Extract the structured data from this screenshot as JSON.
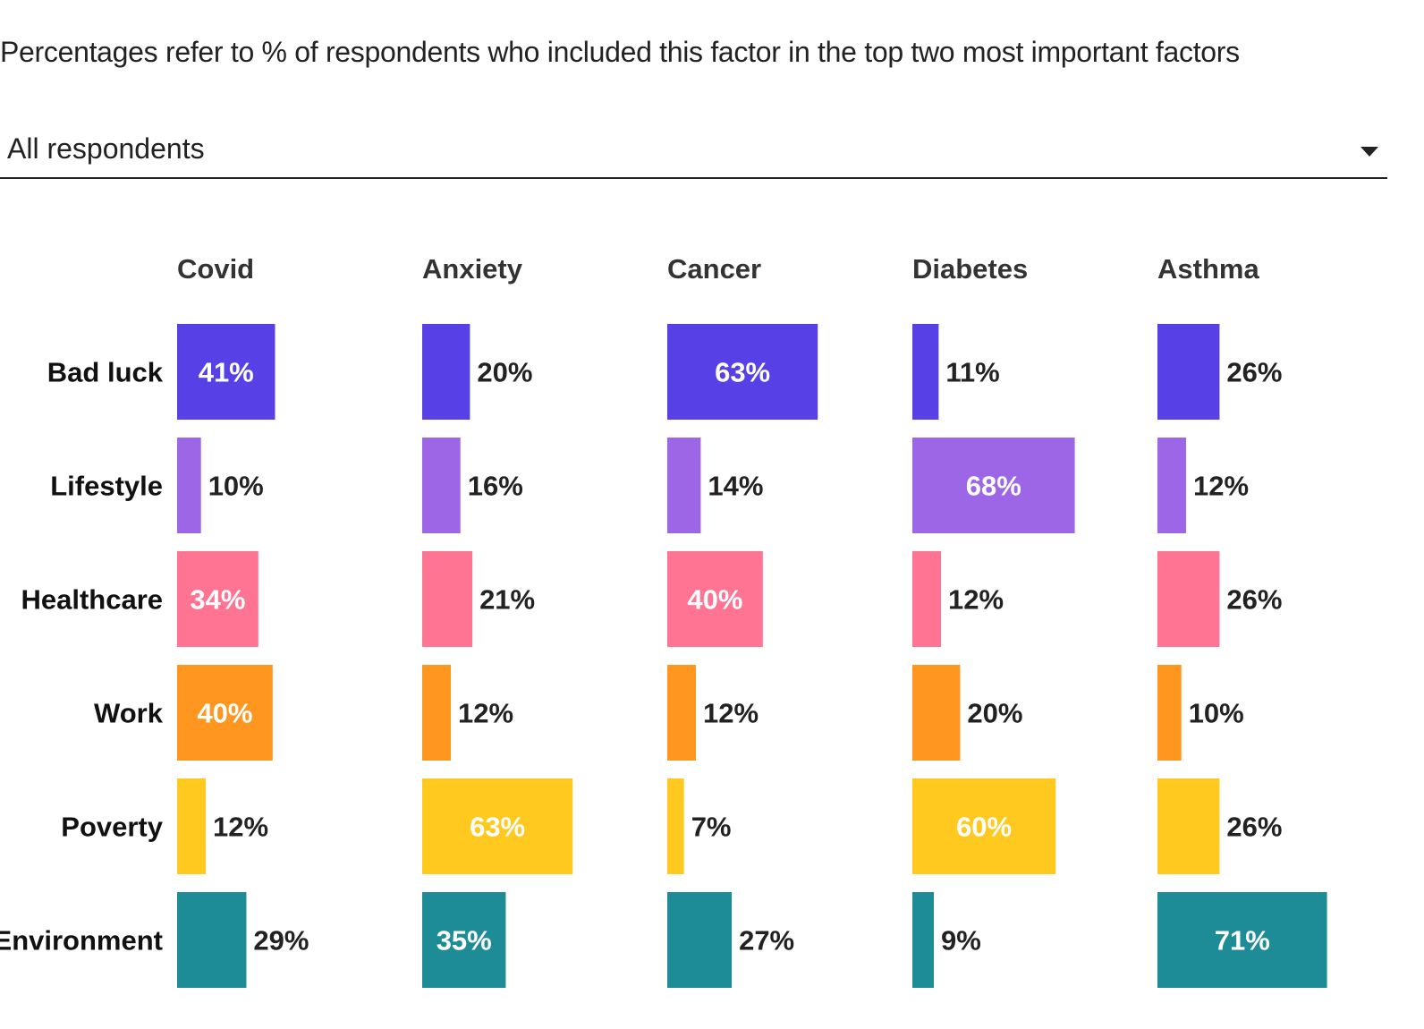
{
  "subtitle": "Percentages refer to % of respondents who included this factor in the top two most important factors",
  "filter": {
    "selected": "All respondents",
    "icon": "chevron-down-icon"
  },
  "chart_data": {
    "type": "bar",
    "unit": "%",
    "columns": [
      "Covid",
      "Anxiety",
      "Cancer",
      "Diabetes",
      "Asthma"
    ],
    "categories": [
      "Bad luck",
      "Lifestyle",
      "Healthcare",
      "Work",
      "Poverty",
      "Environment"
    ],
    "colors": [
      "#5640e6",
      "#9c66e6",
      "#ff7393",
      "#ff961f",
      "#ffc91f",
      "#1e8c96"
    ],
    "values": [
      [
        41,
        20,
        63,
        11,
        26
      ],
      [
        10,
        16,
        14,
        68,
        12
      ],
      [
        34,
        21,
        40,
        12,
        26
      ],
      [
        40,
        12,
        12,
        20,
        10
      ],
      [
        12,
        63,
        7,
        60,
        26
      ],
      [
        29,
        35,
        27,
        9,
        71
      ]
    ],
    "xlim": [
      0,
      100
    ],
    "grid": false,
    "legend": "none"
  }
}
